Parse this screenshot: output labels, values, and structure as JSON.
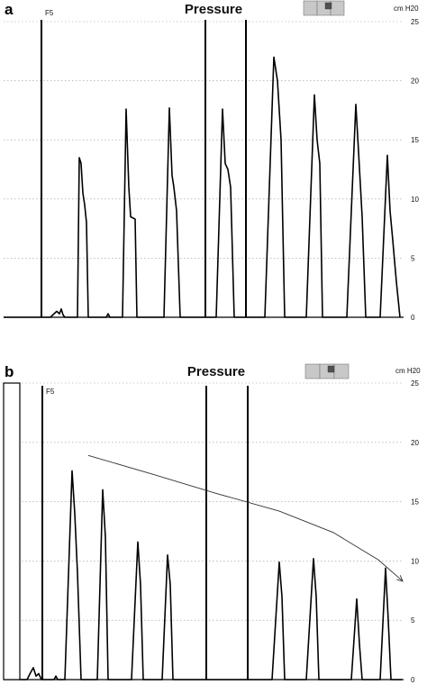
{
  "chart_data": [
    {
      "type": "line",
      "panel_label": "a",
      "title": "Pressure",
      "unit": "cm H20",
      "ylim": [
        0,
        25
      ],
      "y_ticks": [
        0,
        5,
        10,
        15,
        20,
        25
      ],
      "grid": true,
      "event_label": "F5",
      "event_markers": [
        46,
        228,
        273
      ],
      "series": [
        {
          "points": [
            [
              4,
              0
            ],
            [
              56,
              0
            ],
            [
              60,
              0.3
            ],
            [
              63,
              0.5
            ],
            [
              66,
              0.3
            ],
            [
              68,
              0.7
            ],
            [
              70,
              0.2
            ],
            [
              72,
              0
            ],
            [
              86,
              0
            ],
            [
              88,
              13.5
            ],
            [
              90,
              13.0
            ],
            [
              92,
              10.5
            ],
            [
              94,
              9.5
            ],
            [
              96,
              8.0
            ],
            [
              98,
              0
            ],
            [
              118,
              0
            ],
            [
              120,
              0.3
            ],
            [
              122,
              0
            ],
            [
              136,
              0
            ],
            [
              140,
              17.6
            ],
            [
              143,
              11.0
            ],
            [
              145,
              8.5
            ],
            [
              150,
              8.3
            ],
            [
              152,
              0
            ],
            [
              182,
              0
            ],
            [
              188,
              17.7
            ],
            [
              191,
              12.0
            ],
            [
              193,
              11.0
            ],
            [
              196,
              9.0
            ],
            [
              200,
              0
            ],
            [
              240,
              0
            ],
            [
              247,
              17.6
            ],
            [
              250,
              13.0
            ],
            [
              253,
              12.5
            ],
            [
              256,
              11.0
            ],
            [
              260,
              0
            ],
            [
              294,
              0
            ],
            [
              304,
              22.0
            ],
            [
              308,
              20.0
            ],
            [
              312,
              15.0
            ],
            [
              316,
              0
            ],
            [
              340,
              0
            ],
            [
              349,
              18.8
            ],
            [
              352,
              15.0
            ],
            [
              355,
              13.0
            ],
            [
              358,
              0
            ],
            [
              385,
              0
            ],
            [
              395,
              18.0
            ],
            [
              398,
              14.0
            ],
            [
              402,
              8.5
            ],
            [
              406,
              0
            ],
            [
              422,
              0
            ],
            [
              430,
              13.7
            ],
            [
              433,
              9.0
            ],
            [
              436,
              6.5
            ],
            [
              440,
              3.0
            ],
            [
              444,
              0
            ]
          ]
        }
      ]
    },
    {
      "type": "line",
      "panel_label": "b",
      "title": "Pressure",
      "unit": "cm H20",
      "ylim": [
        0,
        25
      ],
      "y_ticks": [
        0,
        5,
        10,
        15,
        20,
        25
      ],
      "grid": true,
      "event_label": "F5",
      "event_markers": [
        47,
        229,
        275
      ],
      "initial_bar": {
        "x_start": 4,
        "x_end": 22,
        "value": 25
      },
      "series": [
        {
          "points": [
            [
              22,
              0
            ],
            [
              30,
              0
            ],
            [
              34,
              0.6
            ],
            [
              37,
              1.0
            ],
            [
              40,
              0.3
            ],
            [
              43,
              0.5
            ],
            [
              46,
              0
            ],
            [
              60,
              0
            ],
            [
              62,
              0.3
            ],
            [
              64,
              0
            ],
            [
              72,
              0
            ],
            [
              80,
              17.6
            ],
            [
              83,
              14.0
            ],
            [
              86,
              9.0
            ],
            [
              90,
              0
            ],
            [
              108,
              0
            ],
            [
              114,
              16.0
            ],
            [
              117,
              12.0
            ],
            [
              120,
              0
            ],
            [
              146,
              0
            ],
            [
              153,
              11.6
            ],
            [
              156,
              8.0
            ],
            [
              159,
              0
            ],
            [
              180,
              0
            ],
            [
              186,
              10.5
            ],
            [
              189,
              8.0
            ],
            [
              192,
              0
            ],
            [
              302,
              0
            ],
            [
              310,
              9.9
            ],
            [
              313,
              7.0
            ],
            [
              316,
              0
            ],
            [
              340,
              0
            ],
            [
              348,
              10.2
            ],
            [
              351,
              7.0
            ],
            [
              354,
              0
            ],
            [
              390,
              0
            ],
            [
              396,
              6.8
            ],
            [
              399,
              3.0
            ],
            [
              402,
              0
            ],
            [
              422,
              0
            ],
            [
              428,
              9.4
            ],
            [
              431,
              5.0
            ],
            [
              434,
              0
            ],
            [
              446,
              0
            ]
          ]
        },
        {
          "type": "trend",
          "arrow": true,
          "points": [
            [
              98,
              18.9
            ],
            [
              170,
              17.3
            ],
            [
              240,
              15.7
            ],
            [
              310,
              14.2
            ],
            [
              370,
              12.4
            ],
            [
              420,
              10.1
            ],
            [
              447,
              8.3
            ]
          ]
        }
      ]
    }
  ]
}
